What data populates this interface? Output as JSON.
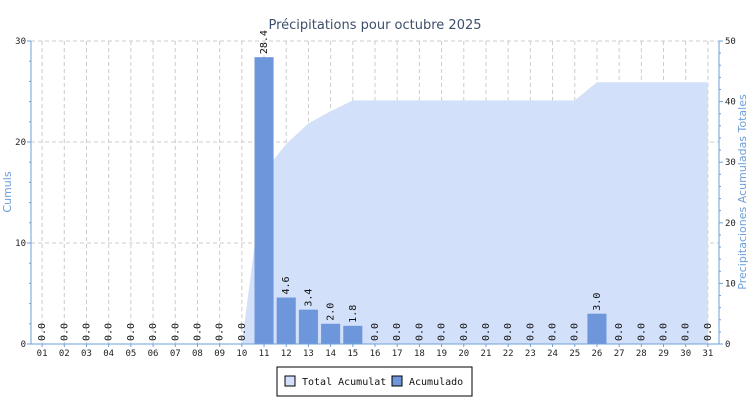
{
  "chart_data": {
    "type": "bar",
    "title": "Précipitations pour octubre 2025",
    "ylabel_left": "Cumuls",
    "ylabel_right": "Precipitaciones Acumuladas Totales",
    "categories": [
      "01",
      "02",
      "03",
      "04",
      "05",
      "06",
      "07",
      "08",
      "09",
      "10",
      "11",
      "12",
      "13",
      "14",
      "15",
      "16",
      "17",
      "18",
      "19",
      "20",
      "21",
      "22",
      "23",
      "24",
      "25",
      "26",
      "27",
      "28",
      "29",
      "30",
      "31"
    ],
    "series": [
      {
        "name": "Acumulado",
        "type": "bar",
        "axis": "left",
        "color": "#6e97db",
        "values": [
          0,
          0,
          0,
          0,
          0,
          0,
          0,
          0,
          0,
          0,
          28.4,
          4.6,
          3.4,
          2.0,
          1.8,
          0,
          0,
          0,
          0,
          0,
          0,
          0,
          0,
          0,
          0,
          3.0,
          0,
          0,
          0,
          0,
          0
        ],
        "labels": [
          "0.0",
          "0.0",
          "0.0",
          "0.0",
          "0.0",
          "0.0",
          "0.0",
          "0.0",
          "0.0",
          "0.0",
          "28.4",
          "4.6",
          "3.4",
          "2.0",
          "1.8",
          "0.0",
          "0.0",
          "0.0",
          "0.0",
          "0.0",
          "0.0",
          "0.0",
          "0.0",
          "0.0",
          "0.0",
          "3.0",
          "0.0",
          "0.0",
          "0.0",
          "0.0",
          "0.0"
        ]
      },
      {
        "name": "Total Acumulat",
        "type": "area",
        "axis": "right",
        "color": "#d3e0fa",
        "values": [
          0,
          0,
          0,
          0,
          0,
          0,
          0,
          0,
          0,
          0,
          28.4,
          33.0,
          36.4,
          38.4,
          40.2,
          40.2,
          40.2,
          40.2,
          40.2,
          40.2,
          40.2,
          40.2,
          40.2,
          40.2,
          40.2,
          43.2,
          43.2,
          43.2,
          43.2,
          43.2,
          43.2
        ]
      }
    ],
    "ylim_left": [
      0,
      30
    ],
    "ylim_right": [
      0,
      50
    ],
    "yticks_left": [
      "0",
      "10",
      "20",
      "30"
    ],
    "yticks_right": [
      "0",
      "10",
      "20",
      "30",
      "40",
      "50"
    ],
    "grid": true,
    "legend_position": "bottom-center"
  },
  "legend": {
    "items": [
      {
        "label": "Total Acumulat",
        "color": "#d3e0fa"
      },
      {
        "label": "Acumulado",
        "color": "#6e97db"
      }
    ]
  }
}
